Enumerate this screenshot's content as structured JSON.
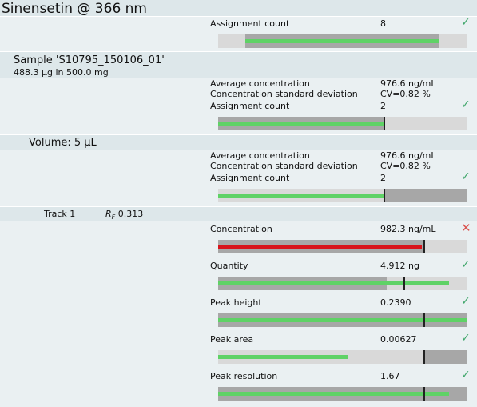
{
  "title": "Sinensetin @ 366 nm",
  "top": {
    "label": "Assignment count",
    "value": "8",
    "status": "pass",
    "bar": {
      "zone_from": 0.11,
      "zone_to": 0.89,
      "fill_from": 0.11,
      "fill_to": 0.89,
      "marker": null
    }
  },
  "sample": {
    "name": "Sample 'S10795_150106_01'",
    "subtitle": "488.3 µg in 500.0 mg",
    "metrics": [
      {
        "label": "Average concentration",
        "value": "976.6 ng/mL"
      },
      {
        "label": "Concentration standard deviation",
        "value": "CV=0.82 %"
      },
      {
        "label": "Assignment count",
        "value": "2"
      }
    ],
    "status": "pass",
    "bar": {
      "zone_from": 0.0,
      "zone_to": 0.67,
      "fill_from": 0.0,
      "fill_to": 0.67,
      "marker": 0.67
    }
  },
  "volume": {
    "label": "Volume: 5 µL",
    "metrics": [
      {
        "label": "Average concentration",
        "value": "976.6 ng/mL"
      },
      {
        "label": "Concentration standard deviation",
        "value": "CV=0.82 %"
      },
      {
        "label": "Assignment count",
        "value": "2"
      }
    ],
    "status": "pass",
    "bar": {
      "zone_from": 0.67,
      "zone_to": 1.0,
      "fill_from": 0.0,
      "fill_to": 0.67,
      "marker": 0.67
    }
  },
  "track": {
    "label": "Track 1",
    "rf_symbol": "R",
    "rf_sub": "F",
    "rf_value": "0.313",
    "items": [
      {
        "label": "Concentration",
        "value": "982.3 ng/mL",
        "status": "fail",
        "bar": {
          "zone_from": 0.0,
          "zone_to": 0.83,
          "fill_from": 0.0,
          "fill_to": 0.82,
          "marker": 0.83,
          "color": "red"
        }
      },
      {
        "label": "Quantity",
        "value": "4.912 ng",
        "status": "pass",
        "bar": {
          "zone_from": 0.0,
          "zone_to": 0.68,
          "fill_from": 0.0,
          "fill_to": 0.93,
          "marker": 0.75
        }
      },
      {
        "label": "Peak height",
        "value": "0.2390",
        "status": "pass",
        "bar": {
          "zone_from": 0.0,
          "zone_to": 1.0,
          "fill_from": 0.0,
          "fill_to": 1.0,
          "marker": 0.83
        }
      },
      {
        "label": "Peak area",
        "value": "0.00627",
        "status": "pass",
        "bar": {
          "zone_from": 0.83,
          "zone_to": 1.0,
          "fill_from": 0.0,
          "fill_to": 0.52,
          "marker": 0.83
        }
      },
      {
        "label": "Peak resolution",
        "value": "1.67",
        "status": "pass",
        "bar": {
          "zone_from": 0.0,
          "zone_to": 1.0,
          "fill_from": 0.0,
          "fill_to": 0.93,
          "marker": 0.83
        }
      }
    ]
  },
  "icons": {
    "pass": "check-icon",
    "fail": "cross-icon"
  },
  "colors": {
    "pass": "#3fa66a",
    "fail": "#d9534f",
    "fill": "#5fd266",
    "fill_fail": "#d8131a"
  }
}
